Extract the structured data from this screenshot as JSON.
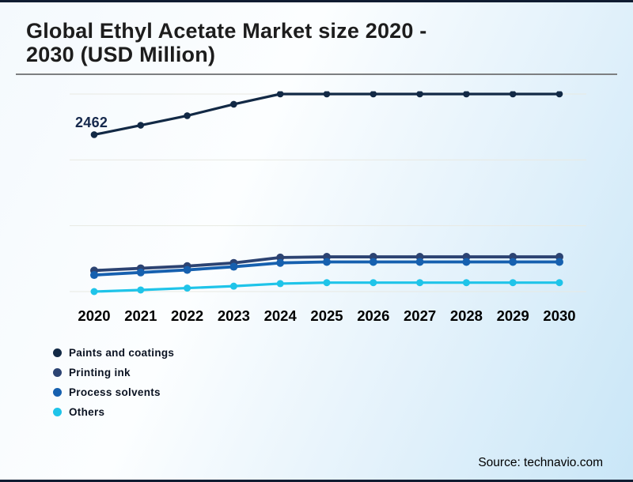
{
  "header": {
    "title_line1": "Global Ethyl Acetate Market size 2020 -",
    "title_line2": "2030 (USD Million)"
  },
  "chart_data": {
    "type": "line",
    "title": "Global Ethyl Acetate Market size 2020 - 2030 (USD Million)",
    "xlabel": "",
    "ylabel": "USD Million",
    "x": [
      "2020",
      "2021",
      "2022",
      "2023",
      "2024",
      "2025",
      "2026",
      "2027",
      "2028",
      "2029",
      "2030"
    ],
    "ylim": [
      0,
      3100
    ],
    "grid": "horizontal",
    "gridline_count": 4,
    "legend_position": "bottom-left",
    "annotation": {
      "series": "Paints and coatings",
      "x": "2020",
      "text": "2462",
      "value": 2462
    },
    "series": [
      {
        "name": "Paints and coatings",
        "color": "#122945",
        "values": [
          2462,
          2610,
          2760,
          2940,
          3100,
          3100,
          3100,
          3100,
          3100,
          3100,
          3100
        ]
      },
      {
        "name": "Printing ink",
        "color": "#2c4372",
        "values": [
          330,
          365,
          400,
          450,
          535,
          545,
          545,
          545,
          545,
          545,
          545
        ]
      },
      {
        "name": "Process solvents",
        "color": "#1660af",
        "values": [
          260,
          300,
          340,
          390,
          450,
          465,
          465,
          465,
          465,
          465,
          465
        ]
      },
      {
        "name": "Others",
        "color": "#1fc4e9",
        "values": [
          0,
          25,
          55,
          85,
          125,
          140,
          140,
          140,
          140,
          140,
          140
        ]
      }
    ]
  },
  "footer": {
    "source": "Source: technavio.com"
  }
}
